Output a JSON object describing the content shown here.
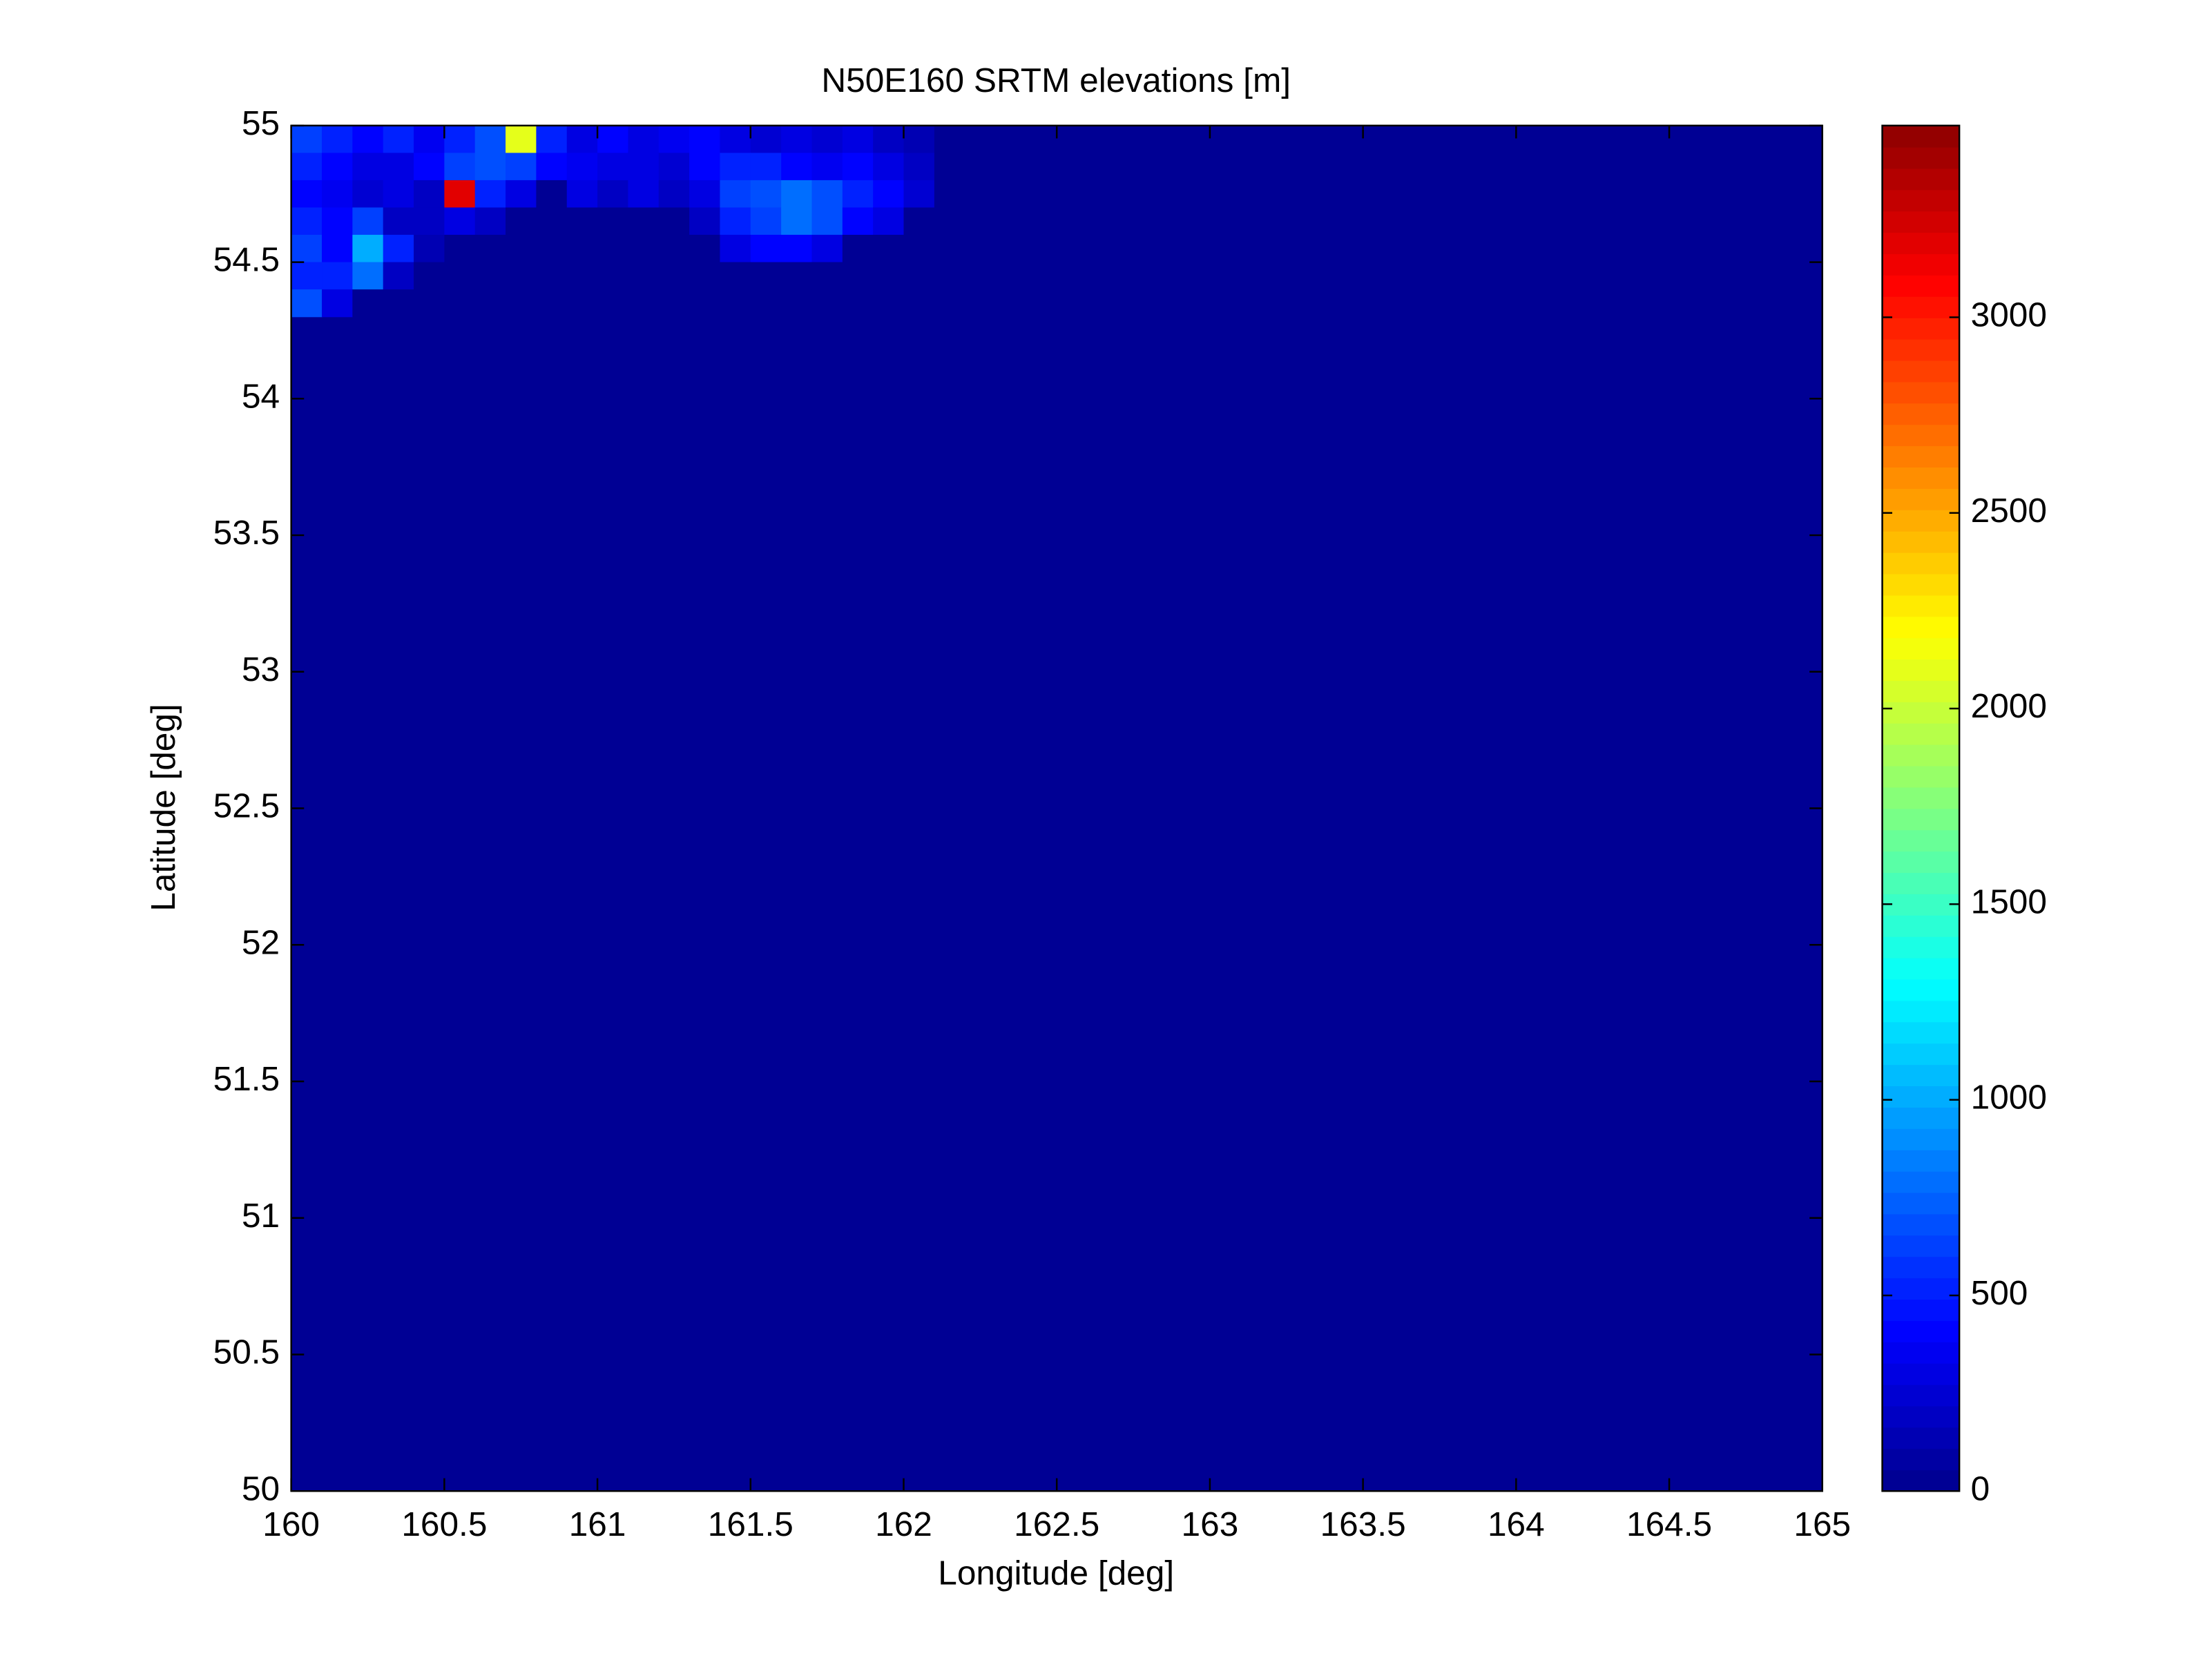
{
  "chart_data": {
    "type": "heatmap",
    "title": "N50E160 SRTM elevations [m]",
    "xlabel": "Longitude [deg]",
    "ylabel": "Latitude [deg]",
    "colormap": "jet",
    "x": [
      160.05,
      160.15,
      160.25,
      160.35,
      160.45,
      160.55,
      160.65,
      160.75,
      160.85,
      160.95,
      161.05,
      161.15,
      161.25,
      161.35,
      161.45,
      161.55,
      161.65,
      161.75,
      161.85,
      161.95,
      162.05,
      162.15
    ],
    "y": [
      54.95,
      54.85,
      54.75,
      54.65,
      54.55,
      54.45,
      54.35
    ],
    "z": [
      [
        600,
        500,
        400,
        500,
        350,
        500,
        700,
        2100,
        500,
        300,
        400,
        300,
        350,
        400,
        300,
        250,
        300,
        250,
        300,
        200,
        150,
        0
      ],
      [
        500,
        400,
        300,
        300,
        400,
        600,
        700,
        600,
        400,
        350,
        300,
        300,
        250,
        400,
        500,
        500,
        400,
        350,
        400,
        300,
        200,
        0
      ],
      [
        400,
        350,
        250,
        300,
        200,
        3200,
        500,
        300,
        0,
        300,
        200,
        300,
        200,
        300,
        600,
        700,
        800,
        700,
        500,
        400,
        250,
        0
      ],
      [
        500,
        400,
        600,
        200,
        200,
        300,
        200,
        0,
        0,
        0,
        0,
        0,
        0,
        200,
        500,
        600,
        800,
        700,
        400,
        300,
        0,
        0
      ],
      [
        600,
        400,
        1000,
        500,
        150,
        0,
        0,
        0,
        0,
        0,
        0,
        0,
        0,
        0,
        300,
        400,
        400,
        300,
        0,
        0,
        0,
        0
      ],
      [
        500,
        500,
        800,
        200,
        0,
        0,
        0,
        0,
        0,
        0,
        0,
        0,
        0,
        0,
        0,
        0,
        0,
        0,
        0,
        0,
        0,
        0
      ],
      [
        700,
        300,
        0,
        0,
        0,
        0,
        0,
        0,
        0,
        0,
        0,
        0,
        0,
        0,
        0,
        0,
        0,
        0,
        0,
        0,
        0,
        0
      ]
    ],
    "xlim": [
      160,
      165
    ],
    "ylim": [
      50,
      55
    ],
    "xticks": [
      160,
      160.5,
      161,
      161.5,
      162,
      162.5,
      163,
      163.5,
      164,
      164.5,
      165
    ],
    "yticks": [
      50,
      50.5,
      51,
      51.5,
      52,
      52.5,
      53,
      53.5,
      54,
      54.5,
      55
    ],
    "colorbar": {
      "lim": [
        0,
        3490
      ],
      "ticks": [
        0,
        500,
        1000,
        1500,
        2000,
        2500,
        3000
      ]
    }
  }
}
